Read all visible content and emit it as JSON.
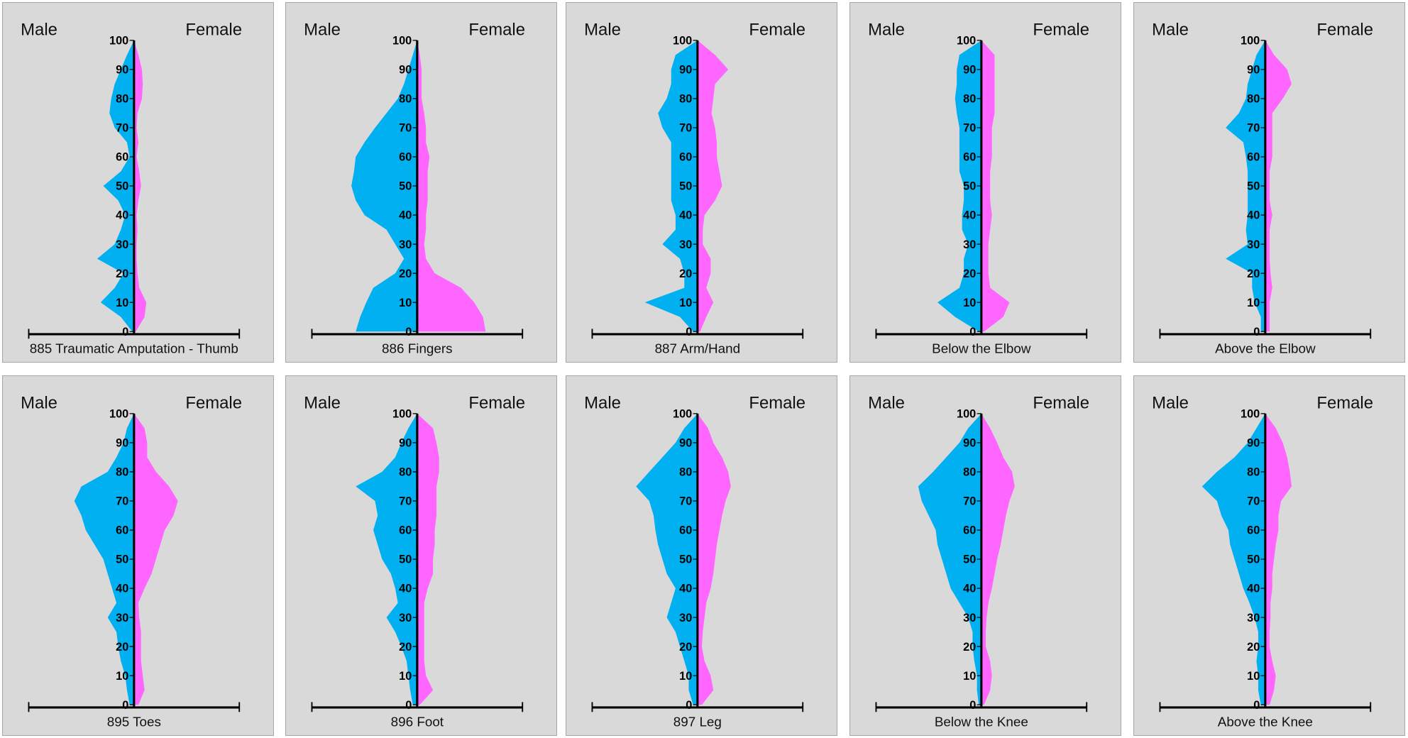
{
  "chart_data": {
    "type": "area",
    "layout": "population pyramid small multiples, 2 rows x 5 columns",
    "ylim": [
      0,
      100
    ],
    "yticks": [
      "0",
      "10",
      "20",
      "30",
      "40",
      "50",
      "60",
      "70",
      "80",
      "90",
      "100"
    ],
    "xlim": [
      -120,
      120
    ],
    "left_label": "Male",
    "right_label": "Female",
    "colors": {
      "male": "#00b0f0",
      "female": "#ff66ff",
      "background": "#d9d9d9"
    },
    "ages": [
      0,
      5,
      10,
      15,
      20,
      25,
      30,
      35,
      40,
      45,
      50,
      55,
      60,
      65,
      70,
      75,
      80,
      85,
      90,
      95,
      100
    ],
    "charts": [
      {
        "title": "885 Traumatic Amputation - Thumb",
        "male": [
          2,
          15,
          38,
          22,
          12,
          42,
          22,
          15,
          10,
          18,
          35,
          15,
          5,
          8,
          22,
          28,
          26,
          22,
          15,
          8,
          0
        ],
        "female": [
          2,
          12,
          14,
          6,
          4,
          3,
          3,
          4,
          3,
          5,
          8,
          6,
          3,
          5,
          3,
          4,
          9,
          10,
          9,
          5,
          0
        ]
      },
      {
        "title": "886 Fingers",
        "male": [
          70,
          65,
          58,
          50,
          25,
          15,
          25,
          35,
          60,
          70,
          75,
          72,
          70,
          60,
          48,
          35,
          22,
          15,
          10,
          5,
          0
        ],
        "female": [
          78,
          75,
          65,
          50,
          20,
          10,
          8,
          10,
          10,
          12,
          12,
          12,
          14,
          10,
          10,
          8,
          5,
          5,
          5,
          3,
          0
        ]
      },
      {
        "title": "887 Arm/Hand",
        "male": [
          5,
          20,
          60,
          15,
          15,
          20,
          40,
          25,
          25,
          30,
          30,
          30,
          30,
          30,
          40,
          45,
          35,
          30,
          30,
          25,
          0
        ],
        "female": [
          3,
          10,
          18,
          10,
          15,
          15,
          6,
          6,
          8,
          20,
          28,
          25,
          22,
          22,
          20,
          16,
          18,
          20,
          35,
          20,
          0
        ]
      },
      {
        "title": "Below the Elbow",
        "male": [
          3,
          30,
          50,
          25,
          20,
          20,
          15,
          22,
          22,
          20,
          20,
          25,
          25,
          25,
          25,
          28,
          30,
          28,
          28,
          25,
          0
        ],
        "female": [
          3,
          25,
          32,
          10,
          8,
          8,
          8,
          10,
          12,
          10,
          10,
          10,
          12,
          12,
          12,
          15,
          15,
          15,
          15,
          15,
          0
        ]
      },
      {
        "title": "Above the Elbow",
        "male": [
          5,
          5,
          12,
          15,
          15,
          45,
          20,
          22,
          20,
          20,
          20,
          20,
          22,
          25,
          45,
          30,
          22,
          20,
          15,
          10,
          0
        ],
        "female": [
          5,
          5,
          5,
          8,
          6,
          5,
          5,
          5,
          8,
          5,
          5,
          5,
          8,
          8,
          8,
          8,
          20,
          30,
          25,
          10,
          0
        ]
      },
      {
        "title": "895 Toes",
        "male": [
          5,
          8,
          10,
          15,
          18,
          20,
          30,
          20,
          25,
          30,
          35,
          45,
          55,
          60,
          68,
          60,
          30,
          20,
          12,
          8,
          0
        ],
        "female": [
          5,
          12,
          10,
          8,
          8,
          8,
          6,
          5,
          12,
          20,
          25,
          30,
          35,
          45,
          50,
          40,
          25,
          15,
          15,
          12,
          0
        ]
      },
      {
        "title": "896 Foot",
        "male": [
          5,
          8,
          10,
          12,
          18,
          25,
          35,
          22,
          25,
          30,
          40,
          45,
          50,
          45,
          48,
          70,
          40,
          25,
          18,
          10,
          0
        ],
        "female": [
          3,
          18,
          10,
          8,
          8,
          8,
          8,
          8,
          12,
          18,
          18,
          20,
          20,
          22,
          22,
          22,
          25,
          25,
          22,
          18,
          0
        ]
      },
      {
        "title": "897 Leg",
        "male": [
          5,
          10,
          10,
          15,
          20,
          25,
          35,
          30,
          25,
          35,
          40,
          45,
          48,
          50,
          55,
          70,
          55,
          40,
          25,
          15,
          0
        ],
        "female": [
          5,
          18,
          15,
          8,
          5,
          6,
          8,
          10,
          15,
          18,
          20,
          22,
          25,
          28,
          32,
          38,
          35,
          28,
          18,
          12,
          0
        ]
      },
      {
        "title": "Below the Knee",
        "male": [
          3,
          5,
          5,
          8,
          10,
          10,
          15,
          25,
          35,
          40,
          45,
          50,
          52,
          60,
          68,
          72,
          55,
          40,
          25,
          15,
          0
        ],
        "female": [
          3,
          10,
          12,
          10,
          5,
          5,
          6,
          8,
          12,
          15,
          18,
          22,
          25,
          28,
          32,
          38,
          35,
          25,
          18,
          10,
          0
        ]
      },
      {
        "title": "Above the Knee",
        "male": [
          5,
          8,
          8,
          10,
          8,
          8,
          12,
          18,
          25,
          30,
          35,
          40,
          42,
          50,
          55,
          72,
          55,
          35,
          20,
          10,
          0
        ],
        "female": [
          5,
          10,
          12,
          8,
          5,
          5,
          6,
          6,
          8,
          8,
          10,
          12,
          15,
          15,
          18,
          30,
          28,
          25,
          20,
          12,
          0
        ]
      }
    ]
  }
}
